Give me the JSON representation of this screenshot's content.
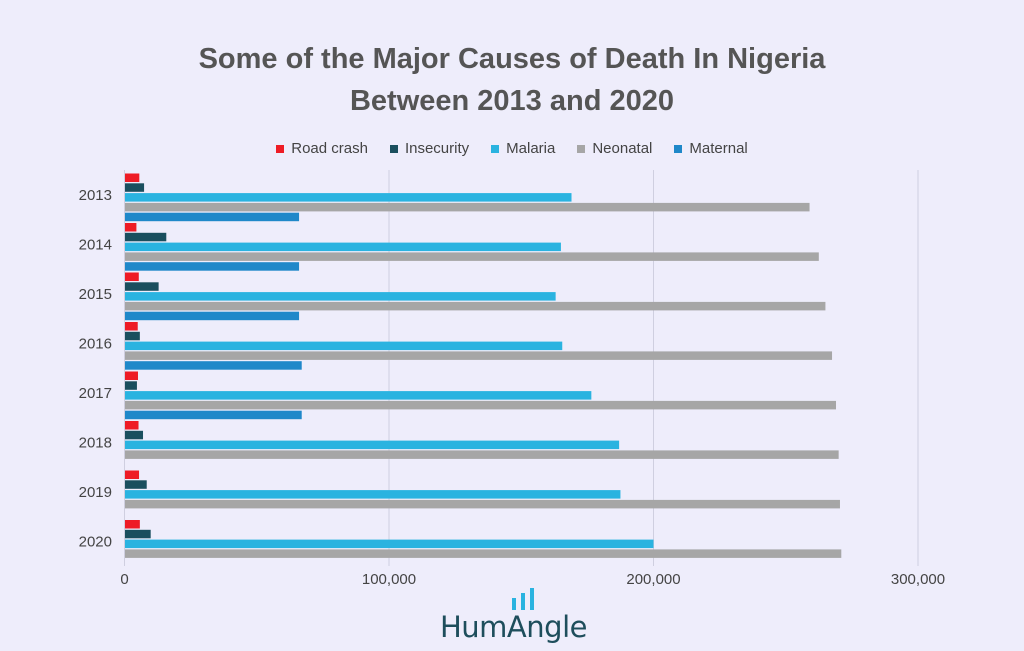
{
  "chart_data": {
    "type": "bar",
    "orientation": "horizontal",
    "title_lines": [
      "Some of the Major Causes of Death In Nigeria",
      "Between 2013 and 2020"
    ],
    "categories": [
      "2013",
      "2014",
      "2015",
      "2016",
      "2017",
      "2018",
      "2019",
      "2020"
    ],
    "series": [
      {
        "name": "Road crash",
        "color": "#ee1c25",
        "values": [
          5600,
          4500,
          5400,
          5000,
          5100,
          5300,
          5500,
          5800
        ]
      },
      {
        "name": "Insecurity",
        "color": "#1a4f5e",
        "values": [
          7400,
          15800,
          12900,
          5800,
          4700,
          7000,
          8400,
          9900
        ]
      },
      {
        "name": "Malaria",
        "color": "#2ab3e0",
        "values": [
          169000,
          165000,
          163000,
          165500,
          176500,
          187000,
          187500,
          200000
        ]
      },
      {
        "name": "Neonatal",
        "color": "#a6a6a6",
        "values": [
          259000,
          262500,
          265000,
          267500,
          269000,
          270000,
          270500,
          271000
        ]
      },
      {
        "name": "Maternal",
        "color": "#1f88c9",
        "values": [
          66000,
          66000,
          66000,
          67000,
          67000,
          null,
          null,
          null
        ]
      }
    ],
    "xlim": [
      0,
      300000
    ],
    "xticks": [
      0,
      100000,
      200000,
      300000
    ],
    "xtick_labels": [
      "0",
      "100,000",
      "200,000",
      "300,000"
    ],
    "grid": true,
    "legend_position": "top-center"
  },
  "branding": {
    "logo_text": "HumAngle",
    "logo_icon": "signal-bars-icon",
    "logo_color": "#1e4e5c",
    "logo_bar_color": "#2ab3e0"
  }
}
